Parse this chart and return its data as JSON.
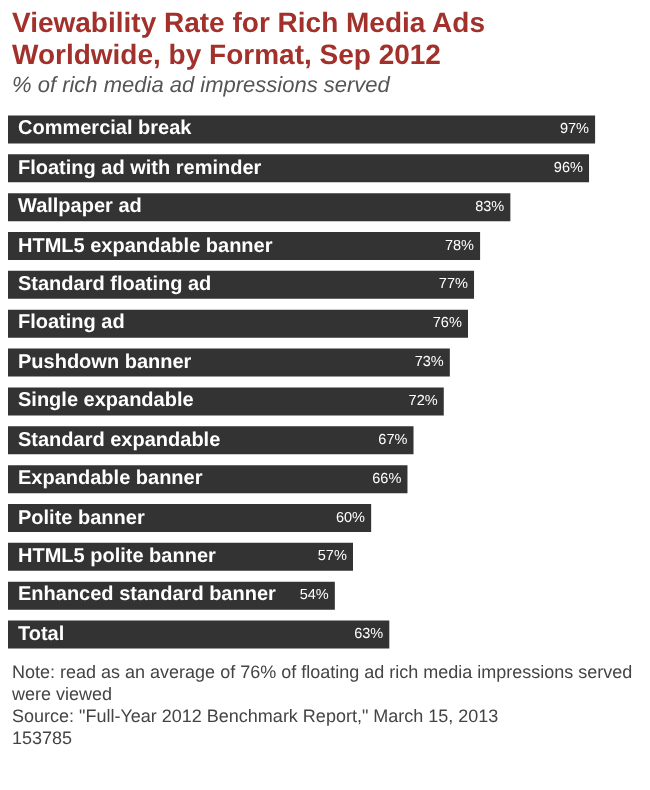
{
  "chart_data": {
    "type": "bar",
    "orientation": "horizontal",
    "title": "Viewability Rate for Rich Media Ads Worldwide, by Format, Sep 2012",
    "subtitle": "% of rich media ad impressions served",
    "categories": [
      "Commercial break",
      "Floating ad with reminder",
      "Wallpaper ad",
      "HTML5 expandable banner",
      "Standard floating ad",
      "Floating ad",
      "Pushdown banner",
      "Single expandable",
      "Standard expandable",
      "Expandable banner",
      "Polite banner",
      "HTML5 polite banner",
      "Enhanced standard banner",
      "Total"
    ],
    "values": [
      97,
      96,
      83,
      78,
      77,
      76,
      73,
      72,
      67,
      66,
      60,
      57,
      54,
      63
    ],
    "value_labels": [
      "97%",
      "96%",
      "83%",
      "78%",
      "77%",
      "76%",
      "73%",
      "72%",
      "67%",
      "66%",
      "60%",
      "57%",
      "54%",
      "63%"
    ],
    "color": "#333333",
    "legend": false,
    "annotations": [
      "Note: read as an average of 76% of floating ad rich media impressions served were viewed",
      "Source: \"Full-Year 2012 Benchmark Report,\" March 15, 2013",
      "153785"
    ]
  }
}
